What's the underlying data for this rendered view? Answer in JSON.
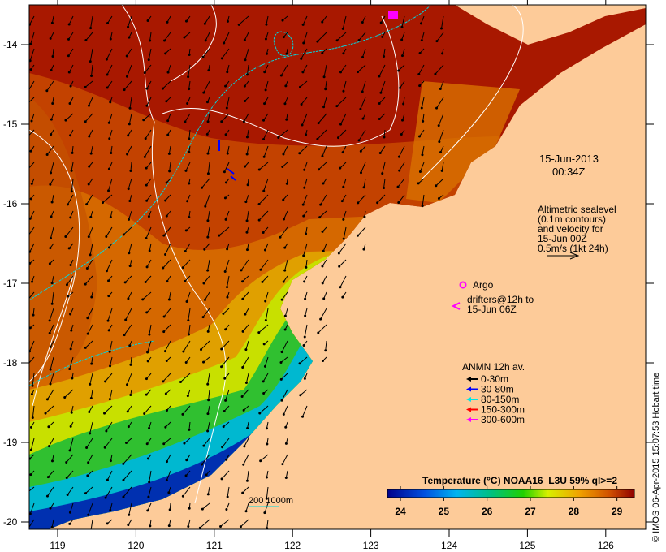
{
  "colors": {
    "land": "#FDCB99",
    "frame": "#000000"
  },
  "axes": {
    "lon_ticks": [
      "119",
      "120",
      "121",
      "122",
      "123",
      "124",
      "125",
      "126"
    ],
    "lat_ticks": [
      "-14",
      "-15",
      "-16",
      "-17",
      "-18",
      "-19",
      "-20"
    ]
  },
  "annotations": {
    "date": "15-Jun-2013",
    "time": "00:34Z",
    "altimetry_lines": [
      "Altimetric sealevel",
      "(0.1m contours)",
      "and velocity for",
      "15-Jun 00Z",
      "0.5m/s (1kt 24h)"
    ],
    "argo_label": "Argo",
    "drifters_lines": [
      "drifters@12h to",
      "15-Jun 06Z"
    ],
    "scale_label": "200  1000m"
  },
  "anmn_legend": {
    "title": "ANMN 12h av.",
    "items": [
      {
        "label": "0-30m",
        "color": "#000000"
      },
      {
        "label": "30-80m",
        "color": "#0000ff"
      },
      {
        "label": "80-150m",
        "color": "#00e5e5"
      },
      {
        "label": "150-300m",
        "color": "#ff0000"
      },
      {
        "label": "300-600m",
        "color": "#ff00ff"
      }
    ]
  },
  "colorbar": {
    "title": "Temperature (°C) NOAA16_L3U 59% ql>=2",
    "ticks": [
      "24",
      "25",
      "26",
      "27",
      "28",
      "29"
    ],
    "range": [
      23.7,
      29.4
    ]
  },
  "credit": "© IMOS 06-Apr-2015 15:07:53 Hobart time"
}
